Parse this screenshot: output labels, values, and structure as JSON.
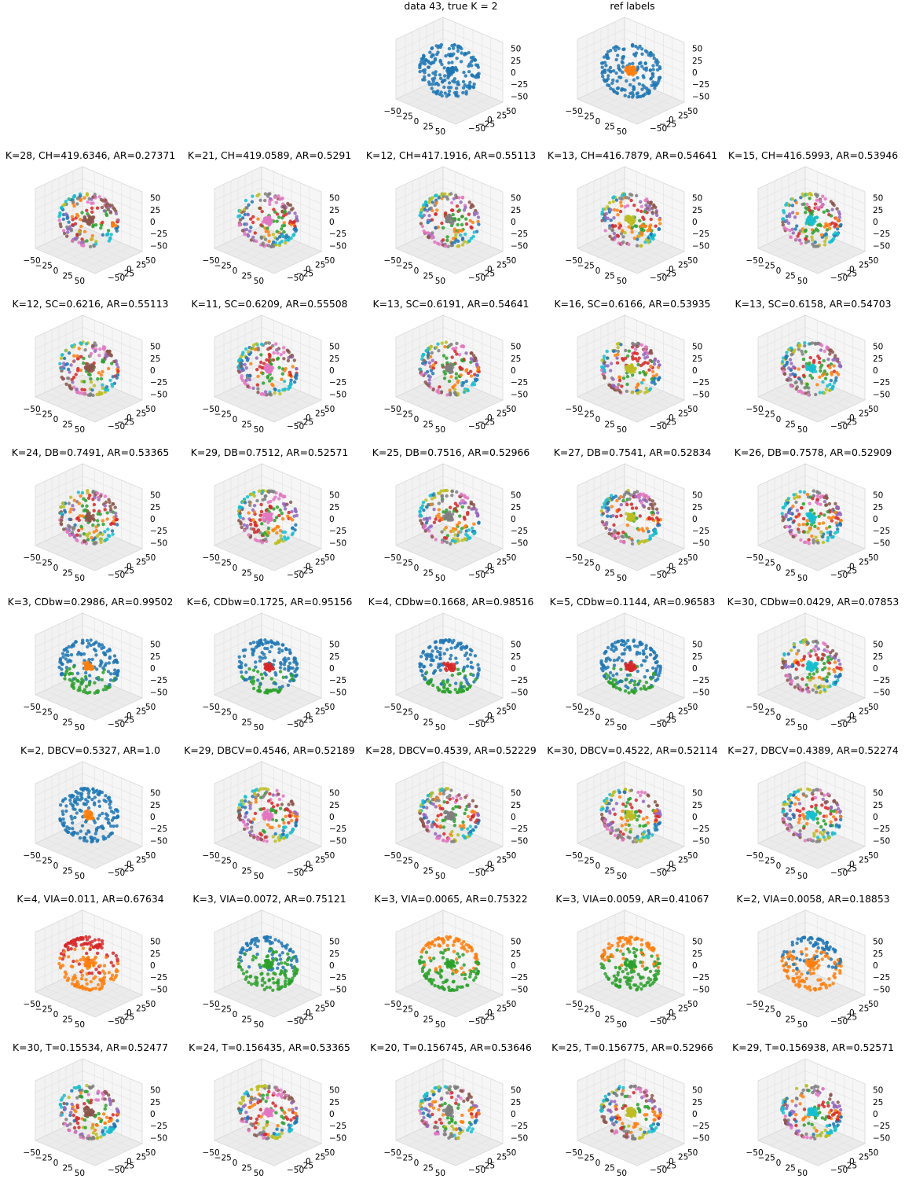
{
  "figure": {
    "layout": {
      "rows": 8,
      "cols": 5
    },
    "palette": [
      "#1f77b4",
      "#ff7f0e",
      "#2ca02c",
      "#d62728",
      "#9467bd",
      "#8c564b",
      "#e377c2",
      "#7f7f7f",
      "#bcbd22",
      "#17becf"
    ]
  },
  "chart_data": [
    {
      "type": "scatter3d",
      "row": 0,
      "col": 2,
      "title": "data 43, true K = 2",
      "k": 1,
      "seed": 1,
      "colors": [
        "#1f77b4"
      ]
    },
    {
      "type": "scatter3d",
      "row": 0,
      "col": 3,
      "title": "ref labels",
      "k": 2,
      "seed": 2,
      "colors": [
        "#1f77b4",
        "#ff7f0e"
      ]
    },
    {
      "type": "scatter3d",
      "row": 1,
      "col": 0,
      "title": "K=28, CH=419.6346, AR=0.27371",
      "k": 28,
      "seed": 11
    },
    {
      "type": "scatter3d",
      "row": 1,
      "col": 1,
      "title": "K=21, CH=419.0589, AR=0.5291",
      "k": 21,
      "seed": 12
    },
    {
      "type": "scatter3d",
      "row": 1,
      "col": 2,
      "title": "K=12, CH=417.1916, AR=0.55113",
      "k": 12,
      "seed": 13
    },
    {
      "type": "scatter3d",
      "row": 1,
      "col": 3,
      "title": "K=13, CH=416.7879, AR=0.54641",
      "k": 13,
      "seed": 14
    },
    {
      "type": "scatter3d",
      "row": 1,
      "col": 4,
      "title": "K=15, CH=416.5993, AR=0.53946",
      "k": 15,
      "seed": 15
    },
    {
      "type": "scatter3d",
      "row": 2,
      "col": 0,
      "title": "K=12, SC=0.6216, AR=0.55113",
      "k": 12,
      "seed": 21
    },
    {
      "type": "scatter3d",
      "row": 2,
      "col": 1,
      "title": "K=11, SC=0.6209, AR=0.55508",
      "k": 11,
      "seed": 22
    },
    {
      "type": "scatter3d",
      "row": 2,
      "col": 2,
      "title": "K=13, SC=0.6191, AR=0.54641",
      "k": 13,
      "seed": 23
    },
    {
      "type": "scatter3d",
      "row": 2,
      "col": 3,
      "title": "K=16, SC=0.6166, AR=0.53935",
      "k": 16,
      "seed": 24
    },
    {
      "type": "scatter3d",
      "row": 2,
      "col": 4,
      "title": "K=13, SC=0.6158, AR=0.54703",
      "k": 13,
      "seed": 25
    },
    {
      "type": "scatter3d",
      "row": 3,
      "col": 0,
      "title": "K=24, DB=0.7491, AR=0.53365",
      "k": 24,
      "seed": 31
    },
    {
      "type": "scatter3d",
      "row": 3,
      "col": 1,
      "title": "K=29, DB=0.7512, AR=0.52571",
      "k": 29,
      "seed": 32
    },
    {
      "type": "scatter3d",
      "row": 3,
      "col": 2,
      "title": "K=25, DB=0.7516, AR=0.52966",
      "k": 25,
      "seed": 33
    },
    {
      "type": "scatter3d",
      "row": 3,
      "col": 3,
      "title": "K=27, DB=0.7541, AR=0.52834",
      "k": 27,
      "seed": 34
    },
    {
      "type": "scatter3d",
      "row": 3,
      "col": 4,
      "title": "K=26, DB=0.7578, AR=0.52909",
      "k": 26,
      "seed": 35
    },
    {
      "type": "scatter3d",
      "row": 4,
      "col": 0,
      "title": "K=3, CDbw=0.2986, AR=0.99502",
      "k": 3,
      "seed": 41,
      "colors": [
        "#1f77b4",
        "#ff7f0e",
        "#2ca02c"
      ]
    },
    {
      "type": "scatter3d",
      "row": 4,
      "col": 1,
      "title": "K=6, CDbw=0.1725, AR=0.95156",
      "k": 6,
      "seed": 42,
      "colors": [
        "#1f77b4",
        "#d62728",
        "#2ca02c",
        "#ff7f0e",
        "#9467bd",
        "#8c564b"
      ]
    },
    {
      "type": "scatter3d",
      "row": 4,
      "col": 2,
      "title": "K=4, CDbw=0.1668, AR=0.98516",
      "k": 4,
      "seed": 43,
      "colors": [
        "#1f77b4",
        "#d62728",
        "#2ca02c",
        "#ff7f0e"
      ]
    },
    {
      "type": "scatter3d",
      "row": 4,
      "col": 3,
      "title": "K=5, CDbw=0.1144, AR=0.96583",
      "k": 5,
      "seed": 44,
      "colors": [
        "#1f77b4",
        "#d62728",
        "#2ca02c",
        "#ff7f0e",
        "#9467bd"
      ]
    },
    {
      "type": "scatter3d",
      "row": 4,
      "col": 4,
      "title": "K=30, CDbw=0.0429, AR=0.07853",
      "k": 30,
      "seed": 45
    },
    {
      "type": "scatter3d",
      "row": 5,
      "col": 0,
      "title": "K=2, DBCV=0.5327, AR=1.0",
      "k": 2,
      "seed": 51,
      "colors": [
        "#1f77b4",
        "#ff7f0e"
      ]
    },
    {
      "type": "scatter3d",
      "row": 5,
      "col": 1,
      "title": "K=29, DBCV=0.4546, AR=0.52189",
      "k": 29,
      "seed": 52
    },
    {
      "type": "scatter3d",
      "row": 5,
      "col": 2,
      "title": "K=28, DBCV=0.4539, AR=0.52229",
      "k": 28,
      "seed": 53
    },
    {
      "type": "scatter3d",
      "row": 5,
      "col": 3,
      "title": "K=30, DBCV=0.4522, AR=0.52114",
      "k": 30,
      "seed": 54
    },
    {
      "type": "scatter3d",
      "row": 5,
      "col": 4,
      "title": "K=27, DBCV=0.4389, AR=0.52274",
      "k": 27,
      "seed": 55
    },
    {
      "type": "scatter3d",
      "row": 6,
      "col": 0,
      "title": "K=4, VIA=0.011, AR=0.67634",
      "k": 4,
      "seed": 61,
      "colors": [
        "#d62728",
        "#ff7f0e",
        "#2ca02c",
        "#1f77b4"
      ]
    },
    {
      "type": "scatter3d",
      "row": 6,
      "col": 1,
      "title": "K=3, VIA=0.0072, AR=0.75121",
      "k": 3,
      "seed": 62,
      "colors": [
        "#1f77b4",
        "#2ca02c",
        "#ff7f0e"
      ]
    },
    {
      "type": "scatter3d",
      "row": 6,
      "col": 2,
      "title": "K=3, VIA=0.0065, AR=0.75322",
      "k": 3,
      "seed": 63,
      "colors": [
        "#ff7f0e",
        "#2ca02c",
        "#1f77b4"
      ]
    },
    {
      "type": "scatter3d",
      "row": 6,
      "col": 3,
      "title": "K=3, VIA=0.0059, AR=0.41067",
      "k": 3,
      "seed": 64,
      "colors": [
        "#ff7f0e",
        "#2ca02c",
        "#1f77b4"
      ]
    },
    {
      "type": "scatter3d",
      "row": 6,
      "col": 4,
      "title": "K=2, VIA=0.0058, AR=0.18853",
      "k": 2,
      "seed": 65,
      "colors": [
        "#1f77b4",
        "#ff7f0e"
      ]
    },
    {
      "type": "scatter3d",
      "row": 7,
      "col": 0,
      "title": "K=30, T=0.15534, AR=0.52477",
      "k": 30,
      "seed": 71
    },
    {
      "type": "scatter3d",
      "row": 7,
      "col": 1,
      "title": "K=24, T=0.156435, AR=0.53365",
      "k": 24,
      "seed": 72
    },
    {
      "type": "scatter3d",
      "row": 7,
      "col": 2,
      "title": "K=20, T=0.156745, AR=0.53646",
      "k": 20,
      "seed": 73
    },
    {
      "type": "scatter3d",
      "row": 7,
      "col": 3,
      "title": "K=25, T=0.156775, AR=0.52966",
      "k": 25,
      "seed": 74
    },
    {
      "type": "scatter3d",
      "row": 7,
      "col": 4,
      "title": "K=29, T=0.156938, AR=0.52571",
      "k": 29,
      "seed": 75
    }
  ],
  "axes": {
    "x_ticks": [
      "−50",
      "−25",
      "0",
      "25",
      "50"
    ],
    "y_ticks": [
      "−50",
      "−25",
      "0",
      "25",
      "50"
    ],
    "z_ticks": [
      "50",
      "25",
      "0",
      "−25",
      "−50"
    ],
    "xlim": [
      -60,
      60
    ],
    "ylim": [
      -60,
      60
    ],
    "zlim": [
      -60,
      60
    ]
  }
}
